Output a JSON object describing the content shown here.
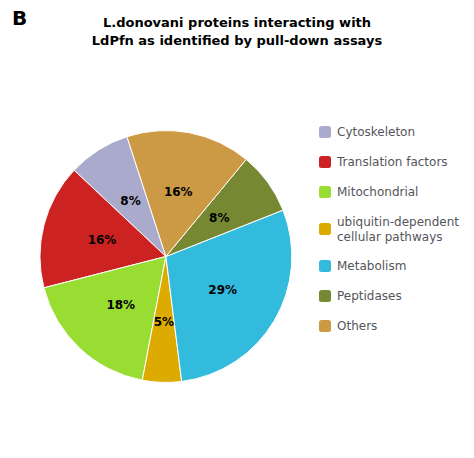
{
  "chart_data": {
    "type": "pie",
    "title": "L.donovani proteins interacting with\nLdPfn as identified by pull-down assays",
    "annotations": [
      "B"
    ],
    "categories": [
      "Cytoskeleton",
      "Translation factors",
      "Mitochondrial",
      "ubiquitin-dependent\ncellular pathways",
      "Metabolism",
      "Peptidases",
      "Others"
    ],
    "values": [
      8,
      16,
      18,
      5,
      29,
      8,
      16
    ],
    "value_labels": [
      "8%",
      "16%",
      "18%",
      "5%",
      "29%",
      "8%",
      "16%"
    ],
    "colors": [
      "#aaaacc",
      "#cc2222",
      "#99dd33",
      "#ddaa00",
      "#33bbdd",
      "#778833",
      "#cc9944"
    ],
    "data_labels": true,
    "legend": "right"
  }
}
